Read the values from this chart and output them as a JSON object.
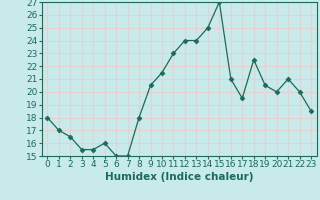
{
  "x": [
    0,
    1,
    2,
    3,
    4,
    5,
    6,
    7,
    8,
    9,
    10,
    11,
    12,
    13,
    14,
    15,
    16,
    17,
    18,
    19,
    20,
    21,
    22,
    23
  ],
  "y": [
    18,
    17,
    16.5,
    15.5,
    15.5,
    16,
    15,
    15,
    18,
    20.5,
    21.5,
    23,
    24,
    24,
    25,
    27,
    21,
    19.5,
    22.5,
    20.5,
    20,
    21,
    20,
    18.5
  ],
  "xlabel": "Humidex (Indice chaleur)",
  "ylim": [
    15,
    27
  ],
  "xlim": [
    -0.5,
    23.5
  ],
  "yticks": [
    15,
    16,
    17,
    18,
    19,
    20,
    21,
    22,
    23,
    24,
    25,
    26,
    27
  ],
  "xticks": [
    0,
    1,
    2,
    3,
    4,
    5,
    6,
    7,
    8,
    9,
    10,
    11,
    12,
    13,
    14,
    15,
    16,
    17,
    18,
    19,
    20,
    21,
    22,
    23
  ],
  "line_color": "#1a6b5a",
  "marker": "D",
  "marker_size": 2.5,
  "bg_color": "#c8eaea",
  "grid_color": "#e8d0d0",
  "tick_fontsize": 6.5,
  "label_fontsize": 7.5
}
